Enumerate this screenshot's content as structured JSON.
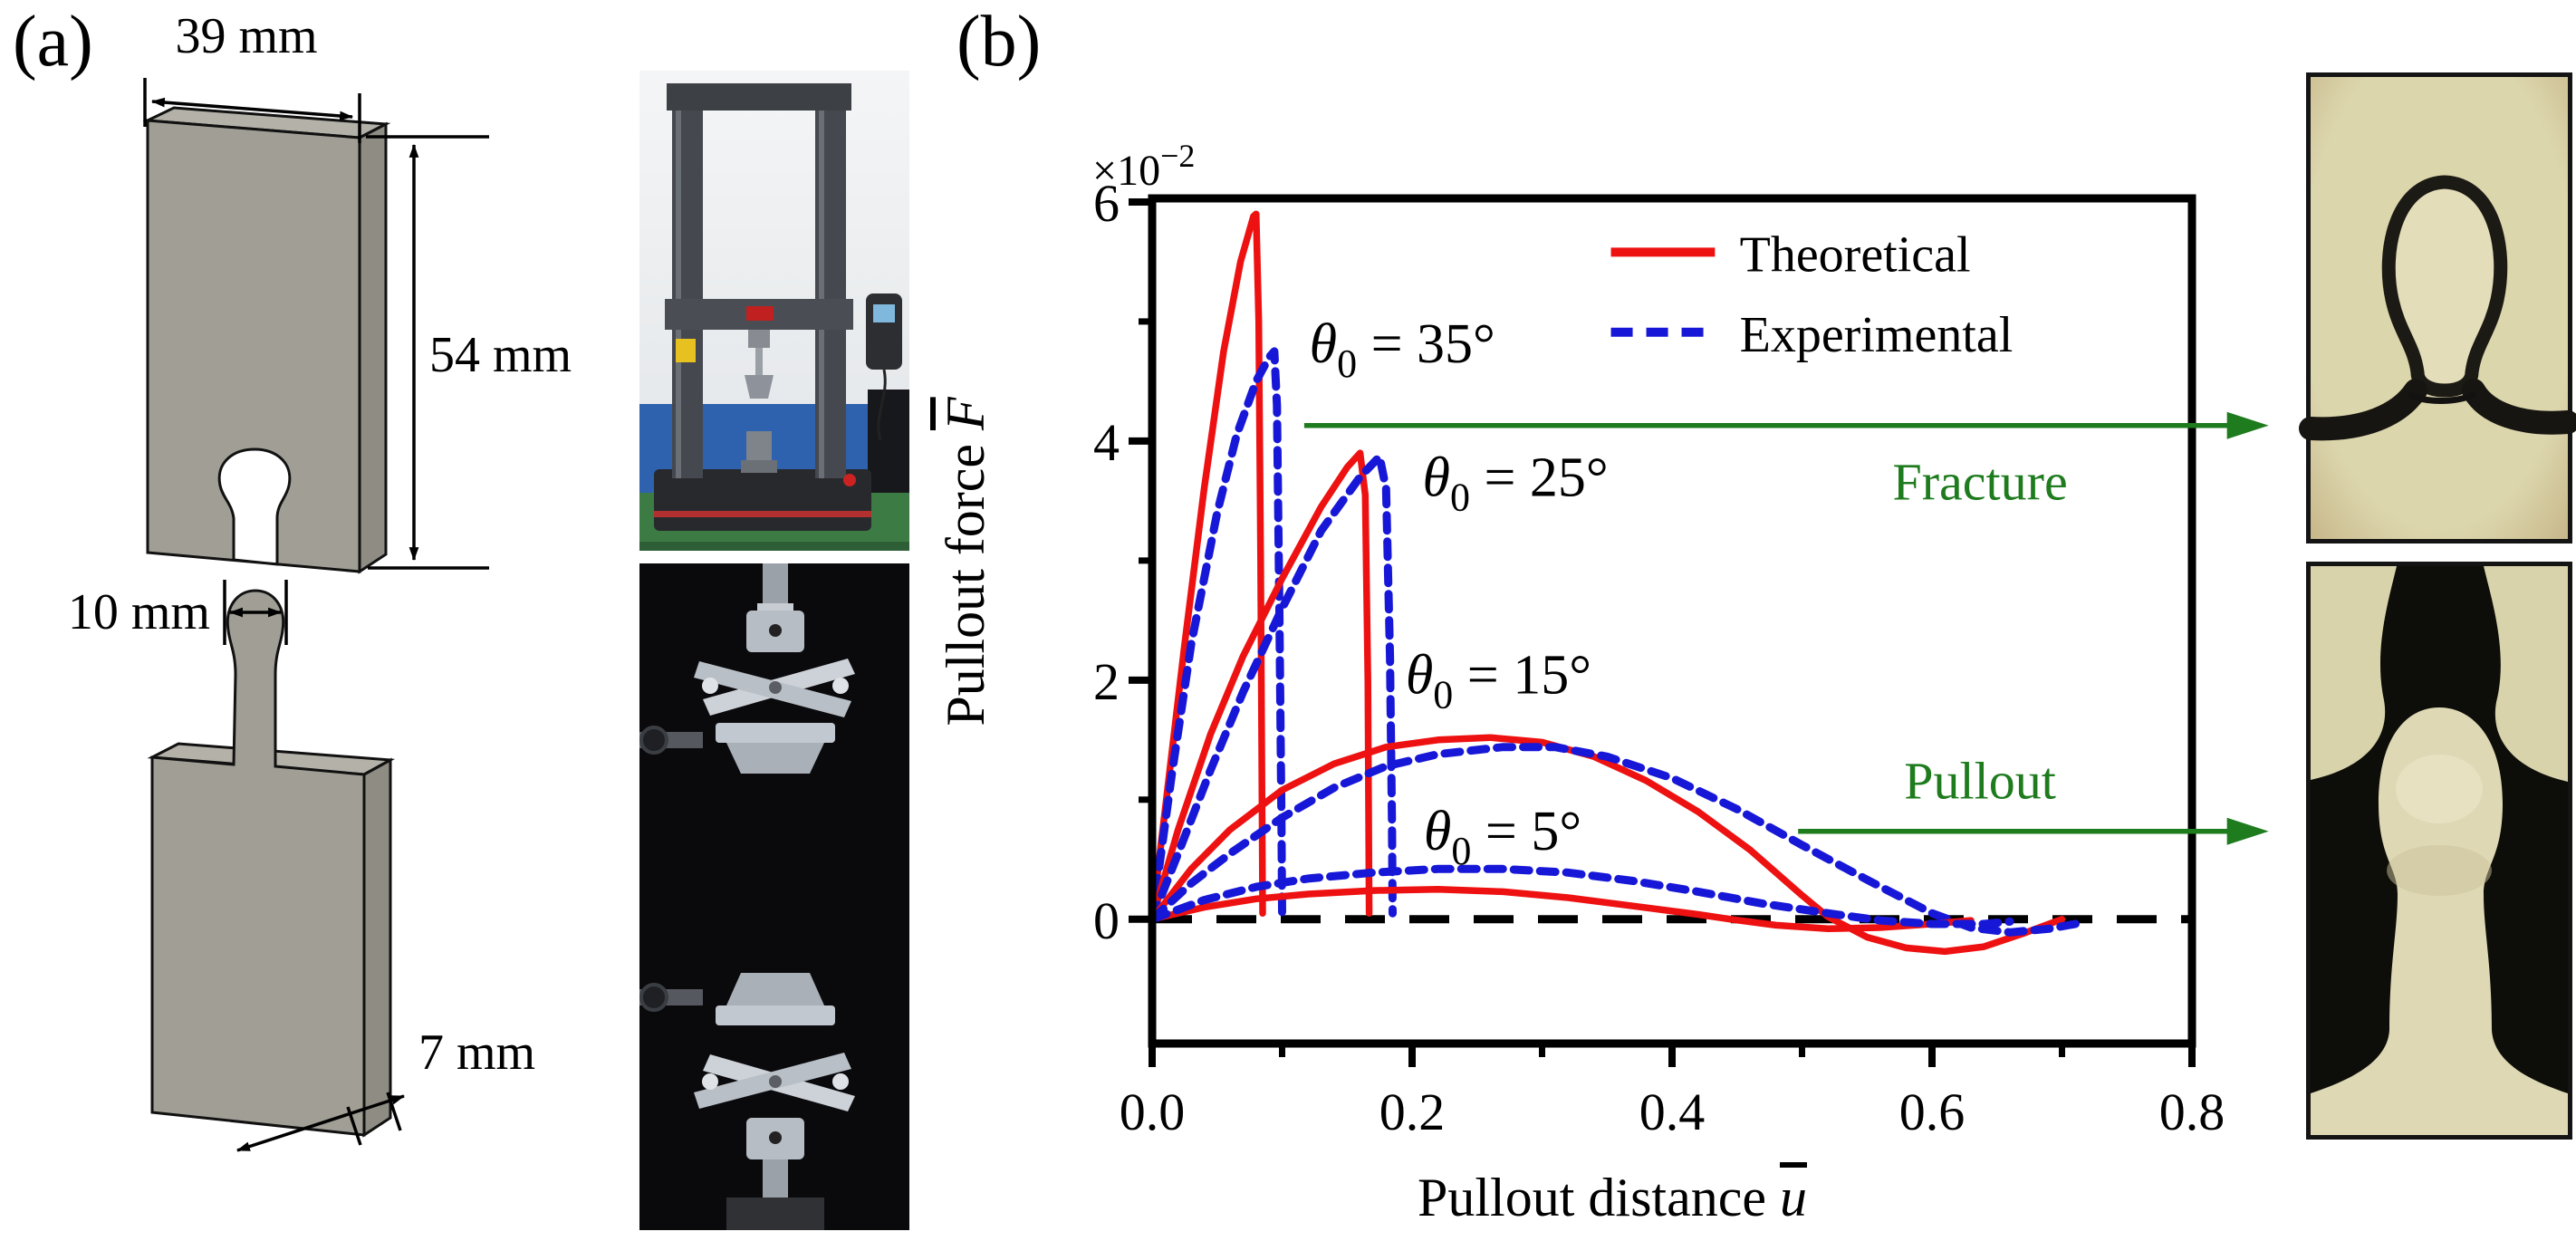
{
  "figure": {
    "panel_a_label": "(a)",
    "panel_b_label": "(b)"
  },
  "panel_a": {
    "dimensions": {
      "top_width": "39 mm",
      "right_height": "54 mm",
      "tab_width": "10 mm",
      "thickness": "7 mm"
    }
  },
  "chart_data": {
    "type": "line",
    "title": "",
    "xlabel": {
      "text": "Pullout distance ",
      "symbol": "u"
    },
    "ylabel": {
      "text": "Pullout force ",
      "symbol": "F"
    },
    "scale_label": {
      "base": "×10",
      "exponent": "−2"
    },
    "xlim": [
      0,
      0.8
    ],
    "ylim": [
      -1.04,
      6.03
    ],
    "grid": false,
    "x_ticks": {
      "major": [
        {
          "v": 0,
          "label": "0.0"
        },
        {
          "v": 0.2,
          "label": "0.2"
        },
        {
          "v": 0.4,
          "label": "0.4"
        },
        {
          "v": 0.6,
          "label": "0.6"
        },
        {
          "v": 0.8,
          "label": "0.8"
        }
      ],
      "minor": [
        0.1,
        0.3,
        0.5,
        0.7
      ]
    },
    "y_ticks": {
      "major": [
        {
          "v": 0,
          "label": "0"
        },
        {
          "v": 2,
          "label": "2"
        },
        {
          "v": 4,
          "label": "4"
        },
        {
          "v": 6,
          "label": "6"
        }
      ],
      "minor": [
        1,
        3,
        5
      ]
    },
    "zero_line": {
      "show": true,
      "color": "#000000",
      "style": "dashed"
    },
    "colors": {
      "theoretical": "#ee1111",
      "experimental": "#1717d8",
      "annotation_green": "#1e7b1e",
      "axis": "#000000"
    },
    "legend": {
      "position": "top-right-inside",
      "items": [
        {
          "label": "Theoretical",
          "style": "solid",
          "color_key": "theoretical"
        },
        {
          "label": "Experimental",
          "style": "dashed",
          "color_key": "experimental"
        }
      ],
      "layout": {
        "line_u": [
          0.353,
          0.433
        ],
        "text_u": 0.452,
        "rows": [
          {
            "line_F": 5.58,
            "text_F": 5.42
          },
          {
            "line_F": 4.91,
            "text_F": 4.75
          }
        ]
      }
    },
    "curve_labels": [
      {
        "symbol": "θ",
        "sub": "0",
        "text": " = 35°",
        "u": 0.121,
        "F": 4.66
      },
      {
        "symbol": "θ",
        "sub": "0",
        "text": " = 25°",
        "u": 0.208,
        "F": 3.54
      },
      {
        "symbol": "θ",
        "sub": "0",
        "text": " = 15°",
        "u": 0.195,
        "F": 1.89
      },
      {
        "symbol": "θ",
        "sub": "0",
        "text": " = 5°",
        "u": 0.209,
        "F": 0.58
      }
    ],
    "outcome_annotations": [
      {
        "label": "Fracture",
        "text_u": 0.637,
        "text_F": 3.51,
        "arrow_F": 4.13,
        "arrow_u_start": 0.117,
        "arrow_u_tip": 0.859
      },
      {
        "label": "Pullout",
        "text_u": 0.637,
        "text_F": 1.01,
        "arrow_F": 0.735,
        "arrow_u_start": 0.497,
        "arrow_u_tip": 0.859
      }
    ],
    "series": [
      {
        "name": "Theoretical θ0 = 35°",
        "angle": "35°",
        "model": "theoretical",
        "style": "solid",
        "color_key": "theoretical",
        "points": [
          [
            0,
            0
          ],
          [
            0.012,
            1.1
          ],
          [
            0.025,
            2.3
          ],
          [
            0.04,
            3.6
          ],
          [
            0.055,
            4.75
          ],
          [
            0.068,
            5.5
          ],
          [
            0.078,
            5.88
          ],
          [
            0.08,
            5.9
          ],
          [
            0.082,
            5.0
          ],
          [
            0.0835,
            3.0
          ],
          [
            0.0845,
            1.0
          ],
          [
            0.085,
            0.05
          ]
        ]
      },
      {
        "name": "Experimental θ0 = 35°",
        "angle": "35°",
        "model": "experimental",
        "style": "dashed",
        "color_key": "experimental",
        "points": [
          [
            0,
            0
          ],
          [
            0.015,
            1.2
          ],
          [
            0.03,
            2.3
          ],
          [
            0.05,
            3.4
          ],
          [
            0.065,
            4.05
          ],
          [
            0.08,
            4.5
          ],
          [
            0.09,
            4.7
          ],
          [
            0.094,
            4.75
          ],
          [
            0.096,
            4.3
          ],
          [
            0.098,
            2.5
          ],
          [
            0.0995,
            0.8
          ],
          [
            0.1,
            0.05
          ]
        ]
      },
      {
        "name": "Theoretical θ0 = 25°",
        "angle": "25°",
        "model": "theoretical",
        "style": "solid",
        "color_key": "theoretical",
        "points": [
          [
            0,
            0
          ],
          [
            0.02,
            0.75
          ],
          [
            0.045,
            1.55
          ],
          [
            0.07,
            2.2
          ],
          [
            0.1,
            2.85
          ],
          [
            0.13,
            3.45
          ],
          [
            0.15,
            3.78
          ],
          [
            0.16,
            3.9
          ],
          [
            0.164,
            3.55
          ],
          [
            0.166,
            2.0
          ],
          [
            0.167,
            0.05
          ]
        ]
      },
      {
        "name": "Experimental θ0 = 25°",
        "angle": "25°",
        "model": "experimental",
        "style": "dashed",
        "color_key": "experimental",
        "points": [
          [
            0,
            0
          ],
          [
            0.02,
            0.55
          ],
          [
            0.045,
            1.25
          ],
          [
            0.07,
            1.9
          ],
          [
            0.1,
            2.6
          ],
          [
            0.13,
            3.25
          ],
          [
            0.16,
            3.7
          ],
          [
            0.175,
            3.87
          ],
          [
            0.18,
            3.6
          ],
          [
            0.183,
            2.2
          ],
          [
            0.1845,
            0.8
          ],
          [
            0.185,
            0.05
          ]
        ]
      },
      {
        "name": "Theoretical θ0 = 15°",
        "angle": "15°",
        "model": "theoretical",
        "style": "solid",
        "color_key": "theoretical",
        "points": [
          [
            0,
            0
          ],
          [
            0.03,
            0.42
          ],
          [
            0.06,
            0.75
          ],
          [
            0.1,
            1.08
          ],
          [
            0.14,
            1.3
          ],
          [
            0.18,
            1.44
          ],
          [
            0.22,
            1.5
          ],
          [
            0.26,
            1.52
          ],
          [
            0.3,
            1.48
          ],
          [
            0.34,
            1.36
          ],
          [
            0.38,
            1.16
          ],
          [
            0.42,
            0.9
          ],
          [
            0.46,
            0.58
          ],
          [
            0.5,
            0.2
          ],
          [
            0.52,
            0.02
          ],
          [
            0.55,
            -0.15
          ],
          [
            0.58,
            -0.24
          ],
          [
            0.61,
            -0.27
          ],
          [
            0.64,
            -0.23
          ],
          [
            0.67,
            -0.12
          ],
          [
            0.695,
            -0.02
          ],
          [
            0.7,
            0
          ]
        ]
      },
      {
        "name": "Experimental θ0 = 15°",
        "angle": "15°",
        "model": "experimental",
        "style": "dashed",
        "color_key": "experimental",
        "points": [
          [
            0,
            0
          ],
          [
            0.03,
            0.3
          ],
          [
            0.06,
            0.55
          ],
          [
            0.1,
            0.85
          ],
          [
            0.14,
            1.1
          ],
          [
            0.18,
            1.28
          ],
          [
            0.22,
            1.38
          ],
          [
            0.27,
            1.44
          ],
          [
            0.31,
            1.44
          ],
          [
            0.35,
            1.36
          ],
          [
            0.4,
            1.18
          ],
          [
            0.45,
            0.92
          ],
          [
            0.5,
            0.62
          ],
          [
            0.55,
            0.33
          ],
          [
            0.6,
            0.05
          ],
          [
            0.63,
            -0.07
          ],
          [
            0.66,
            -0.11
          ],
          [
            0.69,
            -0.08
          ],
          [
            0.715,
            -0.03
          ]
        ]
      },
      {
        "name": "Theoretical θ0 = 5°",
        "angle": "5°",
        "model": "theoretical",
        "style": "solid",
        "color_key": "theoretical",
        "points": [
          [
            0,
            0
          ],
          [
            0.04,
            0.1
          ],
          [
            0.08,
            0.17
          ],
          [
            0.12,
            0.21
          ],
          [
            0.17,
            0.24
          ],
          [
            0.22,
            0.25
          ],
          [
            0.27,
            0.23
          ],
          [
            0.32,
            0.18
          ],
          [
            0.37,
            0.11
          ],
          [
            0.42,
            0.04
          ],
          [
            0.445,
            0
          ],
          [
            0.48,
            -0.05
          ],
          [
            0.52,
            -0.08
          ],
          [
            0.56,
            -0.07
          ],
          [
            0.6,
            -0.04
          ],
          [
            0.63,
            -0.01
          ]
        ]
      },
      {
        "name": "Experimental θ0 = 5°",
        "angle": "5°",
        "model": "experimental",
        "style": "dashed",
        "color_key": "experimental",
        "points": [
          [
            0,
            0
          ],
          [
            0.04,
            0.16
          ],
          [
            0.08,
            0.27
          ],
          [
            0.12,
            0.34
          ],
          [
            0.17,
            0.39
          ],
          [
            0.22,
            0.42
          ],
          [
            0.27,
            0.42
          ],
          [
            0.32,
            0.39
          ],
          [
            0.37,
            0.32
          ],
          [
            0.42,
            0.23
          ],
          [
            0.47,
            0.13
          ],
          [
            0.52,
            0.05
          ],
          [
            0.56,
            -0.01
          ],
          [
            0.6,
            -0.04
          ],
          [
            0.64,
            -0.04
          ],
          [
            0.66,
            -0.02
          ]
        ]
      }
    ]
  }
}
